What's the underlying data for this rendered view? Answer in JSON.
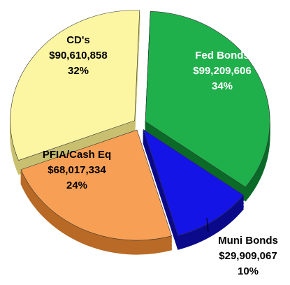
{
  "chart_data": {
    "type": "pie",
    "categories": [
      "Fed Bonds",
      "Muni Bonds",
      "PFIA/Cash Eq",
      "CD's"
    ],
    "values": [
      99209606,
      29909067,
      68017334,
      90610858
    ],
    "value_labels": [
      "$99,209,606",
      "$29,909,067",
      "$68,017,334",
      "$90,610,858"
    ],
    "percentages": [
      34,
      10,
      24,
      32
    ],
    "percentage_labels": [
      "34%",
      "10%",
      "24%",
      "32%"
    ],
    "colors": [
      "#1fb04c",
      "#1414e6",
      "#f7a055",
      "#fcf6a2"
    ],
    "side_colors": [
      "#0c6a28",
      "#0a0a8a",
      "#b86a26",
      "#c8c070"
    ]
  }
}
